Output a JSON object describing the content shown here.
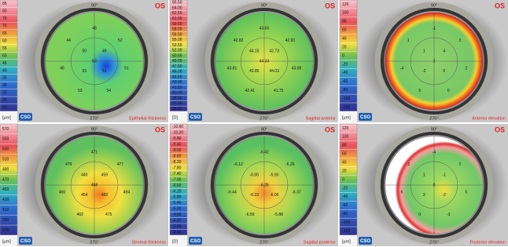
{
  "panels": [
    {
      "title": "Epithelial thickness",
      "eye": "OS",
      "logo": "CSO",
      "unit": "[µm]",
      "angle_top": "90°",
      "angle_bottom": "270°",
      "scale_labels": [
        "85",
        "80",
        "75",
        "70",
        "65",
        "60",
        "55",
        "50",
        "45",
        "40",
        "35",
        "30",
        "25",
        "20",
        "15"
      ],
      "map_labels": [
        "52",
        "51",
        "53",
        "50",
        "49",
        "48",
        "52",
        "51",
        "54",
        "53",
        "46",
        "44"
      ]
    },
    {
      "title": "Sagittal anterior",
      "eye": "OS",
      "logo": "CSO",
      "unit": "[D]",
      "angle_top": "90°",
      "angle_bottom": "270°",
      "scale_labels": [
        "65.50",
        "64.00",
        "62.50",
        "61.00",
        "59.50",
        "58.00",
        "56.50",
        "55.00",
        "53.50",
        "52.00",
        "50.50",
        "49.00",
        "47.50",
        "46.00",
        "44.50",
        "43.00",
        "41.50",
        "40.00",
        "38.50",
        "37.00",
        "35.50"
      ],
      "map_labels": [
        "44.33",
        "44.03",
        "43.85",
        "44.15",
        "42.73",
        "43.65",
        "42.93",
        "43.08",
        "41.75",
        "42.41",
        "43.81",
        "42.82"
      ]
    },
    {
      "title": "Anterior elevation",
      "eye": "OS",
      "logo": "CSO",
      "unit": "[µm]",
      "angle_top": "90°",
      "angle_bottom": "270°",
      "scale_labels": [
        "120",
        "100",
        "80",
        "60",
        "40",
        "20",
        "0",
        "-20",
        "-40",
        "-60",
        "-80",
        "-100",
        "-120"
      ],
      "map_labels": [
        "2",
        "0",
        "-2",
        "1",
        "4",
        "-1",
        "3",
        "2",
        "0",
        "5",
        "-4",
        "1"
      ]
    },
    {
      "title": "Stromal thickness",
      "eye": "OS",
      "logo": "CSO",
      "unit": "[µm]",
      "angle_top": "90°",
      "angle_bottom": "270°",
      "scale_labels": [
        "570",
        "550",
        "530",
        "510",
        "490",
        "470",
        "450",
        "430",
        "410",
        "390",
        "370"
      ],
      "map_labels": [
        "468",
        "483",
        "454",
        "440",
        "459",
        "471",
        "477",
        "494",
        "475",
        "462",
        "466",
        "479"
      ]
    },
    {
      "title": "Sagittal posterior",
      "eye": "OS",
      "logo": "CSO",
      "unit": "[D]",
      "angle_top": "90°",
      "angle_bottom": "270°",
      "scale_labels": [
        "-10.60",
        "-10.20",
        "-9.80",
        "-9.40",
        "-9.00",
        "-8.60",
        "-8.20",
        "-7.80",
        "-7.40",
        "-7.00",
        "-6.60",
        "-6.20",
        "-5.80",
        "-5.40",
        "-5.00",
        "-4.60",
        "-4.20",
        "-3.80",
        "-3.40"
      ],
      "map_labels": [
        "-6.25",
        "-6.05",
        "-6.19",
        "-6.00",
        "-5.93",
        "-6.42",
        "-6.26",
        "-6.37",
        "-5.88",
        "-6.59",
        "-6.44",
        "-6.12"
      ]
    },
    {
      "title": "Posterior elevation",
      "eye": "OS",
      "logo": "CSO",
      "unit": "[µm]",
      "angle_top": "90°",
      "angle_bottom": "270°",
      "scale_labels": [
        "120",
        "100",
        "80",
        "60",
        "40",
        "20",
        "0",
        "-20",
        "-40",
        "-60",
        "-80",
        "-100",
        "-120"
      ],
      "map_labels": [
        "0",
        "-2",
        "3",
        "1",
        "-1",
        "-4",
        "2",
        "5",
        "-3",
        "0",
        "6",
        "-2"
      ]
    }
  ]
}
